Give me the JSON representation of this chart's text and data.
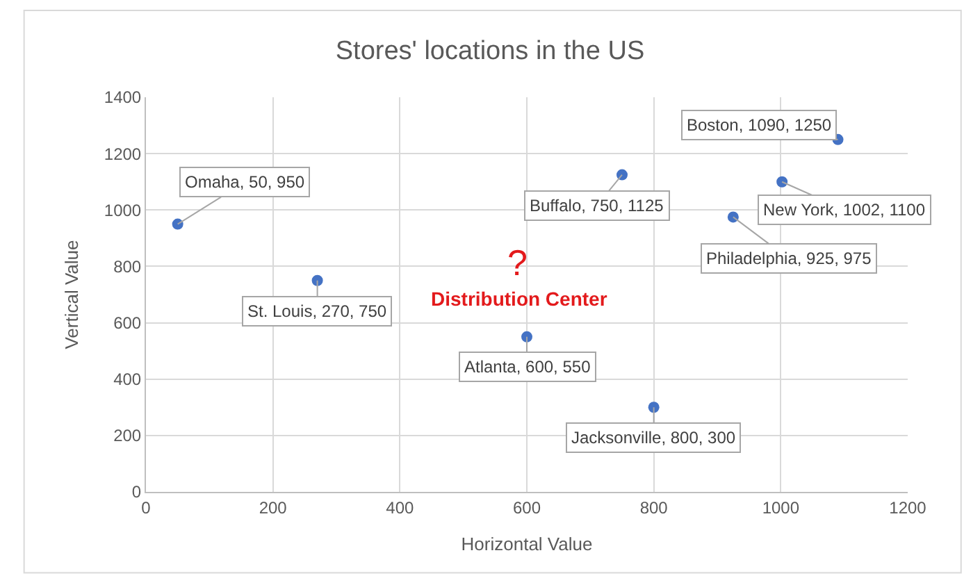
{
  "chart_data": {
    "type": "scatter",
    "title": "Stores' locations in the US",
    "xlabel": "Horizontal Value",
    "ylabel": "Vertical Value",
    "x": [
      50,
      270,
      600,
      750,
      800,
      925,
      1002,
      1090
    ],
    "values": [
      950,
      750,
      550,
      1125,
      300,
      975,
      1100,
      1250
    ],
    "value_labels": [
      "Omaha, 50, 950",
      "St. Louis, 270, 750",
      "Atlanta, 600, 550",
      "Buffalo, 750, 1125",
      "Jacksonville, 800, 300",
      "Philadelphia, 925, 975",
      "New York, 1002, 1100",
      "Boston, 1090, 1250"
    ],
    "color": "#4472c4",
    "marker": "circle",
    "xlim": [
      0,
      1200
    ],
    "xticks": [
      0,
      200,
      400,
      600,
      800,
      1000,
      1200
    ],
    "ylim": [
      0,
      1400
    ],
    "yticks": [
      0,
      200,
      400,
      600,
      800,
      1000,
      1200,
      1400
    ],
    "grid": true,
    "annotations": [
      "?",
      "Distribution Center"
    ]
  }
}
